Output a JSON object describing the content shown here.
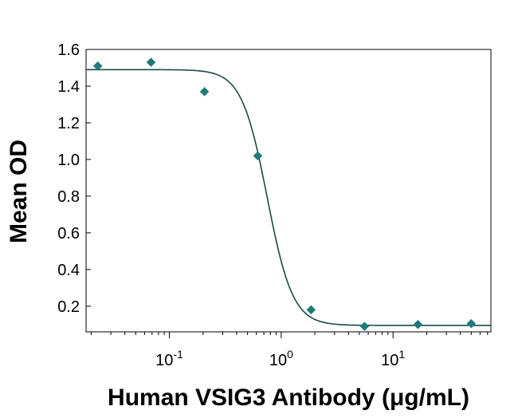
{
  "chart_data": {
    "type": "scatter",
    "title": "",
    "xlabel": "Human VSIG3 Antibody (μg/mL)",
    "ylabel": "Mean OD",
    "x_scale": "log",
    "xlim": [
      0.018,
      75
    ],
    "ylim": [
      0.06,
      1.6
    ],
    "y_ticks": [
      0.2,
      0.4,
      0.6,
      0.8,
      1.0,
      1.2,
      1.4,
      1.6
    ],
    "y_tick_labels": [
      "0.2",
      "0.4",
      "0.6",
      "0.8",
      "1.0",
      "1.2",
      "1.4",
      "1.6"
    ],
    "x_ticks": [
      {
        "value": 0.1,
        "base": "10",
        "exp": "-1"
      },
      {
        "value": 1,
        "base": "10",
        "exp": "0"
      },
      {
        "value": 10,
        "base": "10",
        "exp": "1"
      }
    ],
    "series": [
      {
        "name": "Mean OD",
        "marker": "diamond",
        "color": "#1f7a7a",
        "points": [
          {
            "x": 0.0229,
            "y": 1.51
          },
          {
            "x": 0.0686,
            "y": 1.53
          },
          {
            "x": 0.206,
            "y": 1.37
          },
          {
            "x": 0.617,
            "y": 1.02
          },
          {
            "x": 1.85,
            "y": 0.18
          },
          {
            "x": 5.56,
            "y": 0.09
          },
          {
            "x": 16.7,
            "y": 0.1
          },
          {
            "x": 50,
            "y": 0.105
          }
        ]
      }
    ],
    "fit": {
      "model": "4PL",
      "color": "#1a4a4a",
      "top": 1.49,
      "bottom": 0.095,
      "ec50": 0.75,
      "hill": 3.8
    },
    "grid": false,
    "legend": "none"
  }
}
